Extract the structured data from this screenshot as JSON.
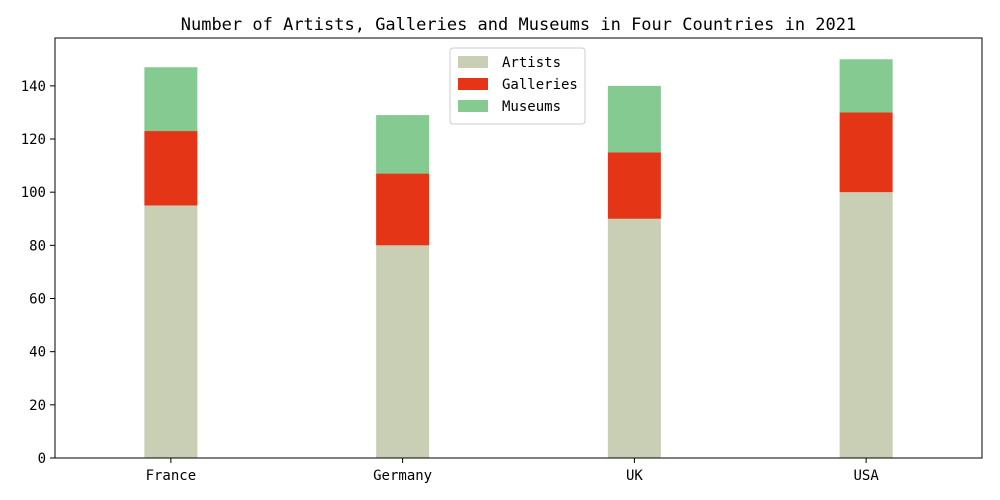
{
  "chart_data": {
    "type": "bar",
    "stacked": true,
    "title": "Number of Artists, Galleries and Museums in Four Countries in 2021",
    "xlabel": "",
    "ylabel": "",
    "categories": [
      "France",
      "Germany",
      "UK",
      "USA"
    ],
    "series": [
      {
        "name": "Artists",
        "values": [
          95,
          80,
          90,
          100
        ],
        "color": "#c8cfb5"
      },
      {
        "name": "Galleries",
        "values": [
          28,
          27,
          25,
          30
        ],
        "color": "#e43516"
      },
      {
        "name": "Museums",
        "values": [
          24,
          22,
          25,
          20
        ],
        "color": "#84ca91"
      }
    ],
    "ylim": [
      0,
      158
    ],
    "yticks": [
      0,
      20,
      40,
      60,
      80,
      100,
      120,
      140
    ],
    "grid": false,
    "legend_position": "top-center"
  }
}
